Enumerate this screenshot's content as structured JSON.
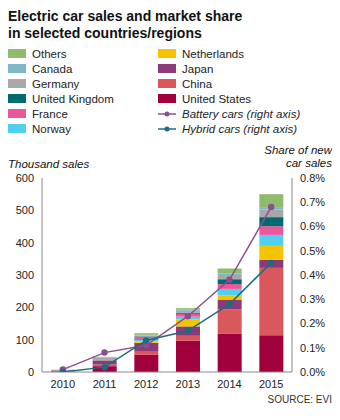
{
  "chart_data": {
    "type": "bar",
    "title": "Electric car sales and market share in selected countries/regions",
    "y_label": "Thousand sales",
    "y2_label": "Share of new car sales",
    "source": "SOURCE: EVI",
    "stacked": true,
    "grid": false,
    "legend": "top",
    "categories": [
      "2010",
      "2011",
      "2012",
      "2013",
      "2014",
      "2015"
    ],
    "ylim": [
      0,
      600
    ],
    "yticks": [
      0,
      100,
      200,
      300,
      400,
      500,
      600
    ],
    "y2lim": [
      0,
      0.8
    ],
    "y2ticks": [
      {
        "value": 0,
        "label": "0.0%"
      },
      {
        "value": 0.1,
        "label": "0.1%"
      },
      {
        "value": 0.2,
        "label": "0.2%"
      },
      {
        "value": 0.3,
        "label": "0.3%"
      },
      {
        "value": 0.4,
        "label": "0.4%"
      },
      {
        "value": 0.5,
        "label": "0.5%"
      },
      {
        "value": 0.6,
        "label": "0.6%"
      },
      {
        "value": 0.7,
        "label": "0.7%"
      },
      {
        "value": 0.8,
        "label": "0.8%"
      }
    ],
    "series": [
      {
        "name": "United States",
        "color": "#a0003c",
        "values": [
          1,
          18,
          53,
          97,
          119,
          114
        ]
      },
      {
        "name": "China",
        "color": "#d9585c",
        "values": [
          1,
          5,
          12,
          15,
          75,
          208
        ]
      },
      {
        "name": "Japan",
        "color": "#8b3a7a",
        "values": [
          2.5,
          13,
          25,
          29,
          30,
          25
        ]
      },
      {
        "name": "Netherlands",
        "color": "#f5c400",
        "values": [
          0.2,
          0.5,
          5,
          22,
          13,
          43
        ]
      },
      {
        "name": "Norway",
        "color": "#4fd0f0",
        "values": [
          0.4,
          2,
          4,
          8,
          20,
          34
        ]
      },
      {
        "name": "France",
        "color": "#e8589a",
        "values": [
          0.5,
          3,
          9,
          9,
          15,
          27
        ]
      },
      {
        "name": "United Kingdom",
        "color": "#006a71",
        "values": [
          0.3,
          1,
          2,
          3.5,
          15,
          28
        ]
      },
      {
        "name": "Germany",
        "color": "#a8a8a8",
        "values": [
          0.5,
          2,
          3,
          6,
          13,
          24
        ]
      },
      {
        "name": "Canada",
        "color": "#7fb8c8",
        "values": [
          0.2,
          0.5,
          2,
          3,
          5,
          7
        ]
      },
      {
        "name": "Others",
        "color": "#8fbc6a",
        "values": [
          0.5,
          2,
          5,
          5,
          15,
          40
        ]
      },
      {
        "name": "Battery cars (right axis)",
        "color": "#8b4f8f",
        "type": "line",
        "axis": "y2",
        "marker": "circle",
        "line_style": "solid",
        "values": [
          0.01,
          0.08,
          0.11,
          0.23,
          0.38,
          0.68
        ]
      },
      {
        "name": "Hybrid cars (right axis)",
        "color": "#1f6b80",
        "type": "line",
        "axis": "y2",
        "marker": "circle",
        "line_style": "solid",
        "values": [
          0.0,
          0.02,
          0.13,
          0.17,
          0.28,
          0.45
        ]
      }
    ]
  }
}
